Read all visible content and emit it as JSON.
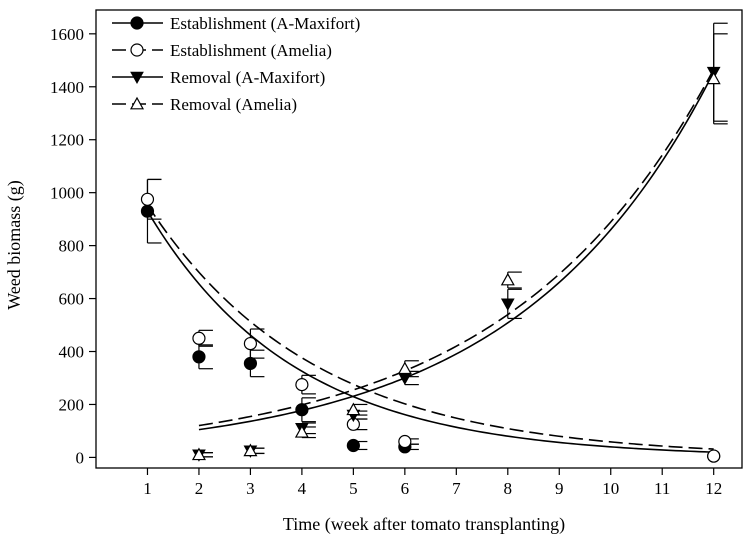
{
  "chart_data": {
    "type": "scatter",
    "xlabel": "Time (week after tomato transplanting)",
    "ylabel": "Weed biomass (g)",
    "xlim": [
      0,
      12.55
    ],
    "ylim": [
      -40,
      1690
    ],
    "xticks": [
      1,
      2,
      3,
      4,
      5,
      6,
      7,
      8,
      9,
      10,
      11,
      12
    ],
    "yticks": [
      0,
      200,
      400,
      600,
      800,
      1000,
      1200,
      1400,
      1600
    ],
    "grid": false,
    "legend_position": "top-left",
    "series": [
      {
        "name": "Establishment (A-Maxifort)",
        "marker": "filled-circle",
        "line": "solid",
        "x": [
          1,
          2,
          3,
          4,
          5,
          6,
          12
        ],
        "y": [
          930,
          380,
          355,
          180,
          45,
          40,
          5
        ],
        "err": [
          120,
          45,
          50,
          45,
          15,
          10,
          0
        ],
        "fit": {
          "model": "exponential",
          "a": 1320,
          "b": -0.35
        }
      },
      {
        "name": "Establishment (Amelia)",
        "marker": "open-circle",
        "line": "dashed",
        "x": [
          1,
          2,
          3,
          4,
          5,
          6,
          12
        ],
        "y": [
          975,
          450,
          430,
          275,
          125,
          60,
          5
        ],
        "err": [
          75,
          30,
          55,
          35,
          20,
          10,
          0
        ],
        "fit": {
          "model": "exponential",
          "a": 1300,
          "b": -0.31
        }
      },
      {
        "name": "Removal (A-Maxifort)",
        "marker": "filled-triangle-down",
        "line": "solid",
        "x": [
          2,
          3,
          4,
          5,
          6,
          8,
          12
        ],
        "y": [
          10,
          25,
          110,
          160,
          300,
          580,
          1455
        ],
        "err": [
          8,
          10,
          20,
          15,
          25,
          55,
          185
        ],
        "fit": {
          "model": "exponential",
          "a": 62,
          "b": 0.263
        }
      },
      {
        "name": "Removal (Amelia)",
        "marker": "open-triangle-up",
        "line": "dashed",
        "x": [
          2,
          3,
          4,
          5,
          6,
          8,
          12
        ],
        "y": [
          10,
          25,
          95,
          180,
          335,
          670,
          1430
        ],
        "err": [
          8,
          10,
          20,
          20,
          30,
          30,
          170
        ],
        "fit": {
          "model": "exponential",
          "a": 73,
          "b": 0.25
        }
      }
    ]
  }
}
